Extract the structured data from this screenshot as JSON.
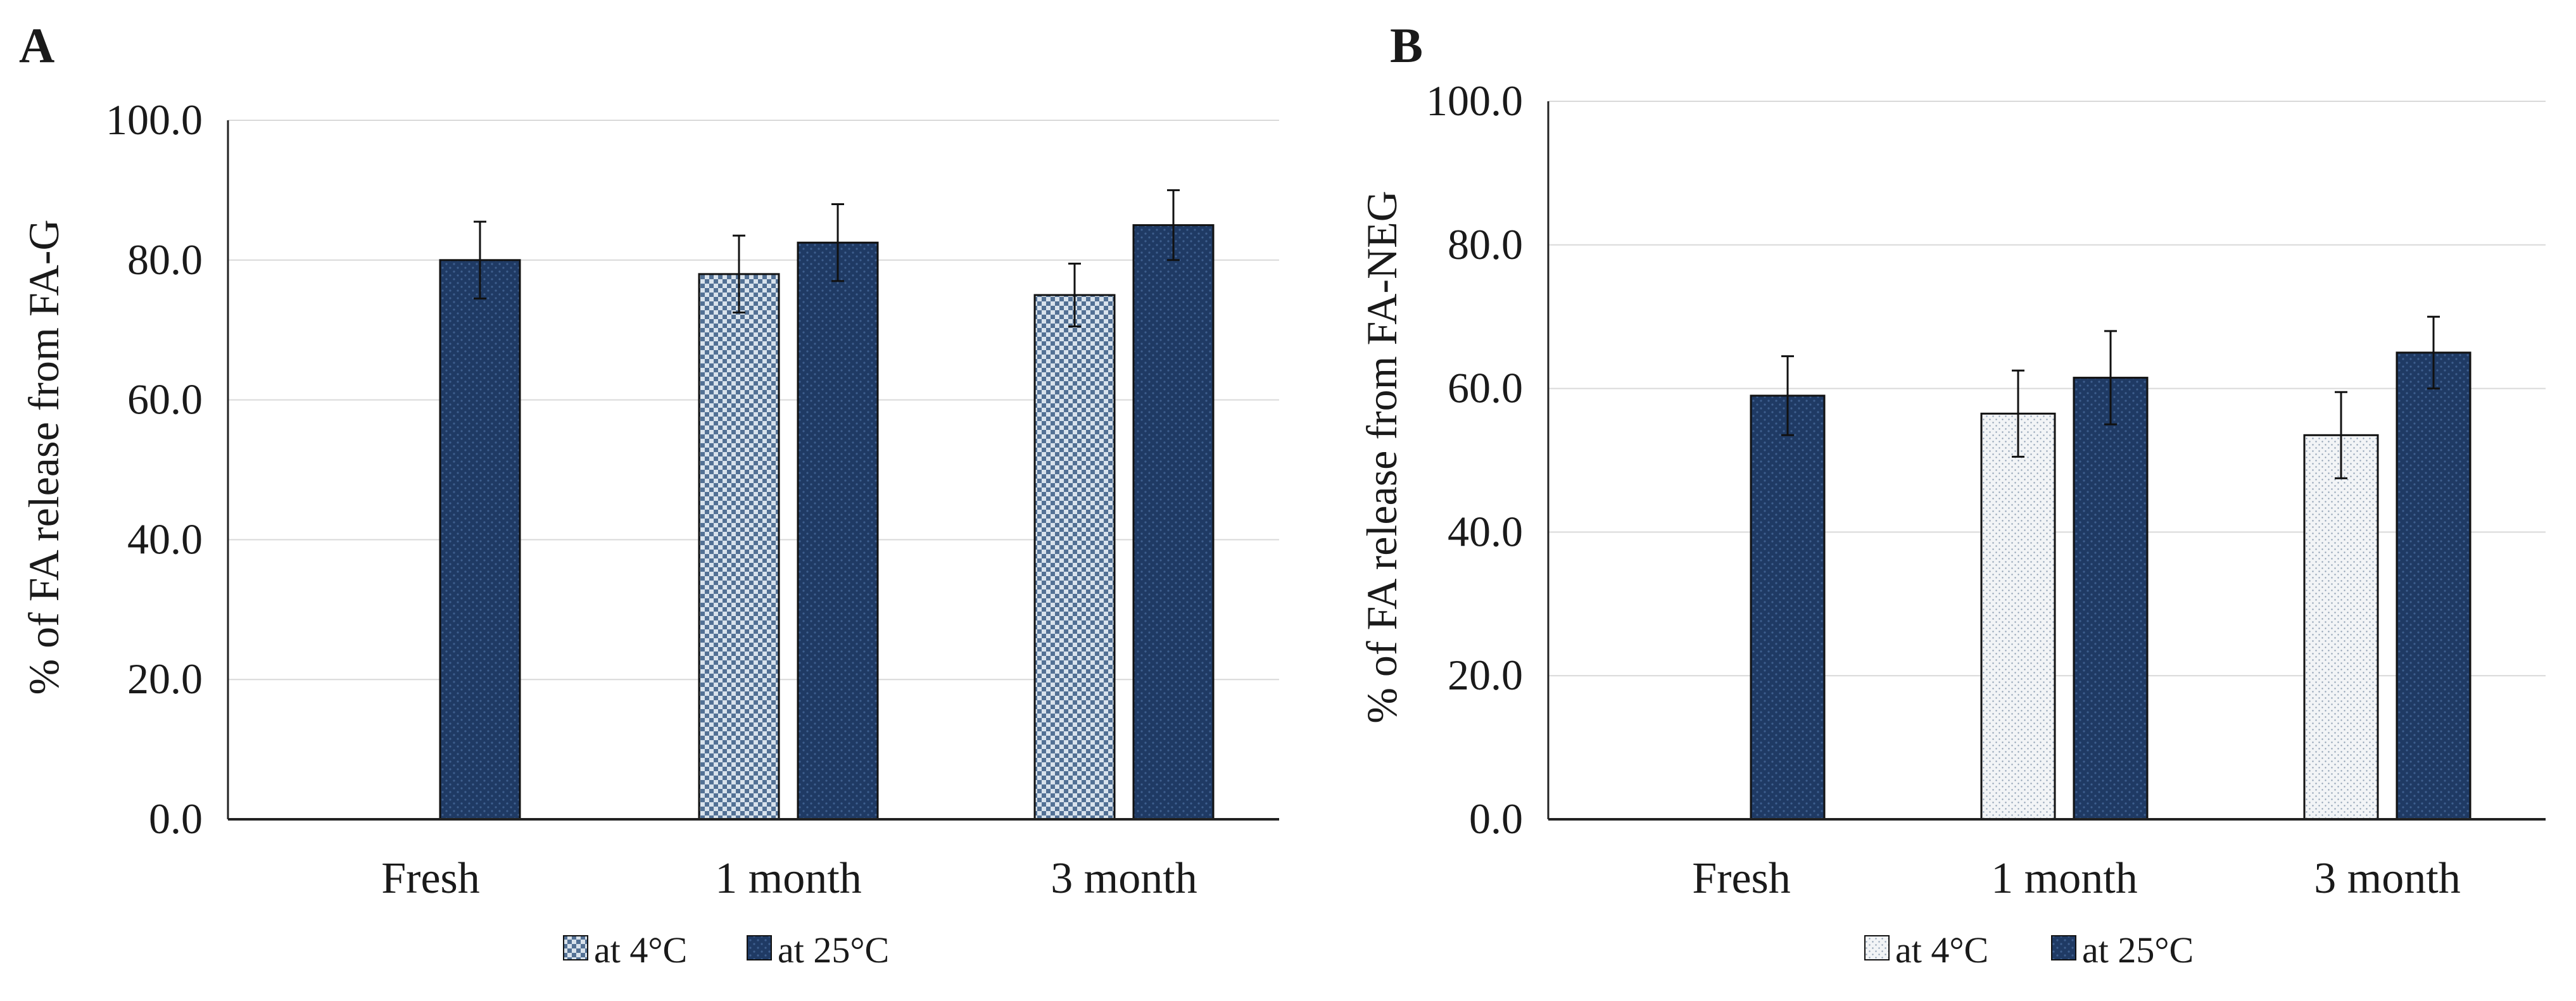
{
  "chart_data": [
    {
      "type": "bar",
      "panel": "A",
      "title": "",
      "xlabel": "",
      "ylabel": "% of FA release  from FA-G",
      "ylim": [
        0,
        100
      ],
      "yticks": [
        "0.0",
        "20.0",
        "40.0",
        "60.0",
        "80.0",
        "100.0"
      ],
      "grid": true,
      "legend_position": "bottom-center",
      "categories": [
        "Fresh",
        "1 month",
        "3 month"
      ],
      "series": [
        {
          "name": "at 4°C",
          "pattern": "checker",
          "values": [
            null,
            78.0,
            75.0
          ],
          "errors": [
            null,
            5.5,
            4.5
          ]
        },
        {
          "name": "at 25°C",
          "pattern": "dots",
          "values": [
            80.0,
            82.5,
            85.0
          ],
          "errors": [
            5.5,
            5.5,
            5.0
          ]
        }
      ],
      "legend": [
        "at 4°C",
        "at 25°C"
      ]
    },
    {
      "type": "bar",
      "panel": "B",
      "title": "",
      "xlabel": "",
      "ylabel": "% of FA release  from FA-NEG",
      "ylim": [
        0,
        100
      ],
      "yticks": [
        "0.0",
        "20.0",
        "40.0",
        "60.0",
        "80.0",
        "100.0"
      ],
      "grid": true,
      "legend_position": "bottom-center",
      "categories": [
        "Fresh",
        "1 month",
        "3 month"
      ],
      "series": [
        {
          "name": "at 4°C",
          "pattern": "light-dots",
          "values": [
            null,
            56.5,
            53.5
          ],
          "errors": [
            null,
            6.0,
            6.0
          ]
        },
        {
          "name": "at 25°C",
          "pattern": "dots",
          "values": [
            59.0,
            61.5,
            65.0
          ],
          "errors": [
            5.5,
            6.5,
            5.0
          ]
        }
      ],
      "legend": [
        "at 4°C",
        "at 25°C"
      ]
    }
  ],
  "colors": {
    "dark_bar": "#1f3a64",
    "dark_bar_dot": "#3e5f8f",
    "checker_bg": "#d8e2ec",
    "checker_fg": "#264a78",
    "light_bg": "#f2f4f6",
    "light_dot": "#8fa0b4",
    "grid": "#d9d9d9",
    "axis": "#222222",
    "error": "#111111"
  }
}
